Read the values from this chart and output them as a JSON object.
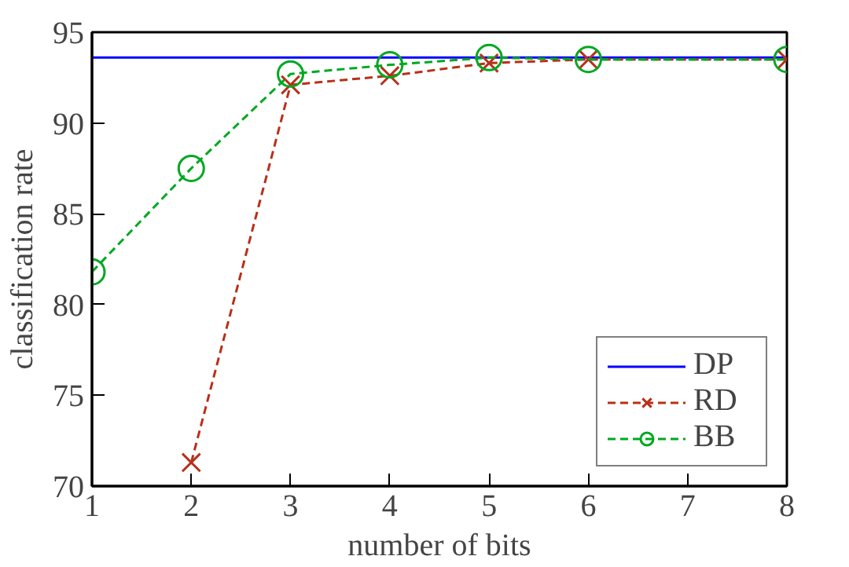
{
  "chart_data": {
    "type": "line",
    "xlabel": "number of bits",
    "ylabel": "classification rate",
    "xlim": [
      1,
      8
    ],
    "ylim": [
      70,
      95
    ],
    "xticks": [
      1,
      2,
      3,
      4,
      5,
      6,
      7,
      8
    ],
    "yticks": [
      70,
      75,
      80,
      85,
      90,
      95
    ],
    "grid": false,
    "legend": "bottom right",
    "series": [
      {
        "name": "DP",
        "color": "#0000ff",
        "x": [
          1,
          8
        ],
        "values": [
          93.6,
          93.6
        ],
        "marker": "none",
        "line_style": "solid"
      },
      {
        "name": "RD",
        "color": "#b8301a",
        "x": [
          2,
          3,
          4,
          5,
          6,
          8
        ],
        "values": [
          71.3,
          92.1,
          92.6,
          93.3,
          93.5,
          93.5
        ],
        "marker": "cross",
        "line_style": "dashed"
      },
      {
        "name": "BB",
        "color": "#00a821",
        "x": [
          1,
          2,
          3,
          4,
          5,
          6,
          8
        ],
        "values": [
          81.8,
          87.5,
          92.7,
          93.2,
          93.6,
          93.5,
          93.5
        ],
        "marker": "circle",
        "line_style": "dashed"
      }
    ]
  }
}
